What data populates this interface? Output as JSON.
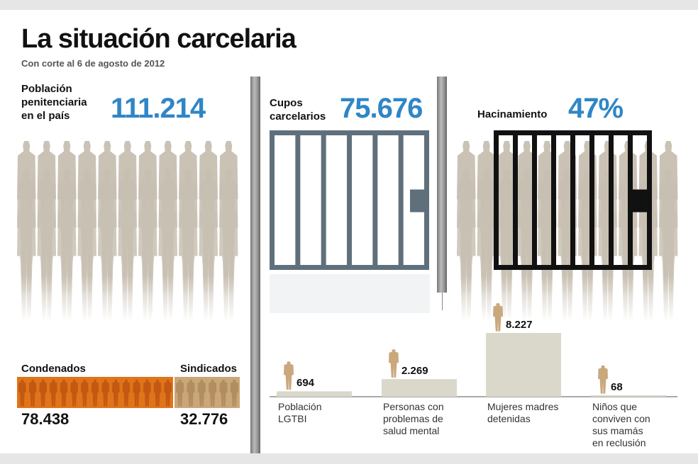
{
  "header": {
    "title": "La situación carcelaria",
    "subtitle": "Con corte al 6 de agosto de 2012"
  },
  "stats": {
    "population": {
      "label_line1": "Población",
      "label_line2": "penitenciaria",
      "label_line3": "en el país",
      "value": "111.214"
    },
    "capacity": {
      "label_line1": "Cupos",
      "label_line2": "carcelarios",
      "value": "75.676"
    },
    "overcrowding": {
      "label": "Hacinamiento",
      "value": "47%"
    },
    "condenados": {
      "label": "Condenados",
      "value": "78.438"
    },
    "sindicados": {
      "label": "Sindicados",
      "value": "32.776"
    }
  },
  "colors": {
    "accent_blue": "#2f86c6",
    "figure_tan": "#c8bfb2",
    "condenados_orange": "#e0741a",
    "sindicados_tan": "#c9a77a",
    "bar_fill": "#d9d8ca",
    "person_icon": "#c9a87c",
    "cell_gray": "#5f707c",
    "cell_black": "#111111"
  },
  "icons": [
    "person-silhouette-icon",
    "jail-cell-icon",
    "woman-icon",
    "mother-child-icon"
  ],
  "chart_data": {
    "type": "bar",
    "categories": [
      "Población LGTBI",
      "Personas con problemas de salud mental",
      "Mujeres madres detenidas",
      "Niños que conviven con sus mamás en reclusión"
    ],
    "labels": [
      "Población\nLGTBI",
      "Personas con\nproblemas de\nsalud mental",
      "Mujeres madres\ndetenidas",
      "Niños que\nconviven con\nsus mamás\nen reclusión"
    ],
    "values": [
      694,
      2269,
      8227,
      68
    ],
    "value_labels": [
      "694",
      "2.269",
      "8.227",
      "68"
    ]
  }
}
